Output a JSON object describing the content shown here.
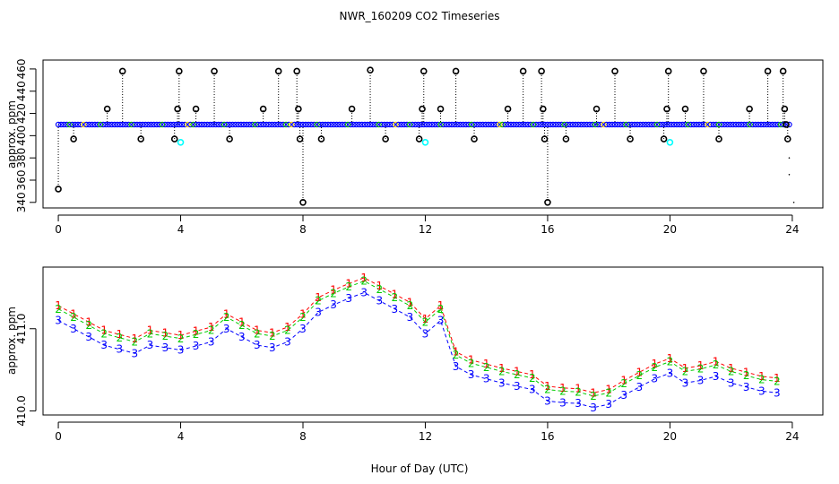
{
  "title": "NWR_160209  CO2 Timeseries",
  "x_axis_label": "Hour of Day (UTC)",
  "colors": {
    "axis": "#000000",
    "outlier_marker": "#000000",
    "main_series": "#0000ff",
    "cyan_points": "#00ffff",
    "yellow_points": "#ffd700",
    "green_points": "#00b000",
    "series_1": "#ff0000",
    "series_2": "#00cc00",
    "series_3": "#0000ff"
  },
  "chart_data": [
    {
      "type": "scatter",
      "panel": "top",
      "ylabel": "approx. ppm",
      "xlim": [
        -0.5,
        25.0
      ],
      "ylim": [
        335,
        468
      ],
      "xticks": [
        0,
        4,
        8,
        12,
        16,
        20,
        24
      ],
      "xtick_labels": [
        "0",
        "4",
        "8",
        "12",
        "16",
        "20",
        "24"
      ],
      "yticks": [
        340,
        360,
        380,
        400,
        420,
        440,
        460
      ],
      "ytick_labels": [
        "340",
        "360",
        "380",
        "400",
        "420",
        "440",
        "460"
      ],
      "baseline": 410,
      "baseline_range": [
        0,
        23.9
      ],
      "outliers": [
        {
          "x": 0.0,
          "y": 352
        },
        {
          "x": 0.5,
          "y": 397
        },
        {
          "x": 1.6,
          "y": 424
        },
        {
          "x": 2.1,
          "y": 458
        },
        {
          "x": 2.7,
          "y": 397
        },
        {
          "x": 3.8,
          "y": 397
        },
        {
          "x": 3.9,
          "y": 424
        },
        {
          "x": 3.95,
          "y": 458
        },
        {
          "x": 4.5,
          "y": 424
        },
        {
          "x": 5.1,
          "y": 458
        },
        {
          "x": 5.6,
          "y": 397
        },
        {
          "x": 6.7,
          "y": 424
        },
        {
          "x": 7.2,
          "y": 458
        },
        {
          "x": 7.8,
          "y": 458
        },
        {
          "x": 7.85,
          "y": 424
        },
        {
          "x": 7.9,
          "y": 397
        },
        {
          "x": 8.0,
          "y": 340
        },
        {
          "x": 8.6,
          "y": 397
        },
        {
          "x": 9.6,
          "y": 424
        },
        {
          "x": 10.2,
          "y": 459
        },
        {
          "x": 10.7,
          "y": 397
        },
        {
          "x": 11.8,
          "y": 397
        },
        {
          "x": 11.9,
          "y": 424
        },
        {
          "x": 11.95,
          "y": 458
        },
        {
          "x": 12.5,
          "y": 424
        },
        {
          "x": 13.0,
          "y": 458
        },
        {
          "x": 13.6,
          "y": 397
        },
        {
          "x": 14.7,
          "y": 424
        },
        {
          "x": 15.2,
          "y": 458
        },
        {
          "x": 15.8,
          "y": 458
        },
        {
          "x": 15.85,
          "y": 424
        },
        {
          "x": 15.9,
          "y": 397
        },
        {
          "x": 16.0,
          "y": 340
        },
        {
          "x": 16.6,
          "y": 397
        },
        {
          "x": 17.6,
          "y": 424
        },
        {
          "x": 18.2,
          "y": 458
        },
        {
          "x": 18.7,
          "y": 397
        },
        {
          "x": 19.8,
          "y": 397
        },
        {
          "x": 19.9,
          "y": 424
        },
        {
          "x": 19.95,
          "y": 458
        },
        {
          "x": 20.5,
          "y": 424
        },
        {
          "x": 21.1,
          "y": 458
        },
        {
          "x": 21.6,
          "y": 397
        },
        {
          "x": 22.6,
          "y": 424
        },
        {
          "x": 23.2,
          "y": 458
        },
        {
          "x": 23.7,
          "y": 458
        },
        {
          "x": 23.75,
          "y": 424
        },
        {
          "x": 23.8,
          "y": 410
        },
        {
          "x": 23.85,
          "y": 397
        }
      ],
      "cyan_points": [
        {
          "x": 4.0,
          "y": 394
        },
        {
          "x": 12.0,
          "y": 394
        },
        {
          "x": 20.0,
          "y": 394
        }
      ],
      "tail_dots": [
        {
          "x": 23.9,
          "y": 380
        },
        {
          "x": 23.9,
          "y": 365
        },
        {
          "x": 24.05,
          "y": 340
        }
      ]
    },
    {
      "type": "line",
      "panel": "bottom",
      "ylabel": "approx. ppm",
      "xlabel": "Hour of Day (UTC)",
      "xlim": [
        -0.5,
        25.0
      ],
      "ylim": [
        409.95,
        411.75
      ],
      "xticks": [
        0,
        4,
        8,
        12,
        16,
        20,
        24
      ],
      "xtick_labels": [
        "0",
        "4",
        "8",
        "12",
        "16",
        "20",
        "24"
      ],
      "yticks": [
        410.0,
        411.0
      ],
      "ytick_labels": [
        "410.0",
        "411.0"
      ],
      "x": [
        0.0,
        0.5,
        1.0,
        1.5,
        2.0,
        2.5,
        3.0,
        3.5,
        4.0,
        4.5,
        5.0,
        5.5,
        6.0,
        6.5,
        7.0,
        7.5,
        8.0,
        8.5,
        9.0,
        9.5,
        10.0,
        10.5,
        11.0,
        11.5,
        12.0,
        12.5,
        13.0,
        13.5,
        14.0,
        14.5,
        15.0,
        15.5,
        16.0,
        16.5,
        17.0,
        17.5,
        18.0,
        18.5,
        19.0,
        19.5,
        20.0,
        20.5,
        21.0,
        21.5,
        22.0,
        22.5,
        23.0,
        23.5
      ],
      "series": [
        {
          "name": "1",
          "label": "1",
          "values": [
            411.28,
            411.18,
            411.08,
            410.98,
            410.93,
            410.88,
            410.98,
            410.95,
            410.92,
            410.97,
            411.02,
            411.18,
            411.08,
            410.98,
            410.95,
            411.02,
            411.18,
            411.38,
            411.47,
            411.55,
            411.62,
            411.52,
            411.42,
            411.32,
            411.12,
            411.28,
            410.72,
            410.62,
            410.57,
            410.52,
            410.48,
            410.44,
            410.3,
            410.28,
            410.27,
            410.22,
            410.26,
            410.37,
            410.47,
            410.57,
            410.64,
            410.52,
            410.55,
            410.6,
            410.52,
            410.47,
            410.42,
            410.4
          ]
        },
        {
          "name": "2",
          "label": "2",
          "values": [
            411.24,
            411.14,
            411.04,
            410.94,
            410.89,
            410.84,
            410.94,
            410.91,
            410.88,
            410.93,
            410.98,
            411.14,
            411.04,
            410.94,
            410.91,
            410.98,
            411.14,
            411.34,
            411.43,
            411.51,
            411.58,
            411.48,
            411.38,
            411.28,
            411.08,
            411.24,
            410.68,
            410.58,
            410.53,
            410.48,
            410.44,
            410.4,
            410.26,
            410.24,
            410.23,
            410.18,
            410.22,
            410.33,
            410.43,
            410.53,
            410.6,
            410.48,
            410.51,
            410.56,
            410.48,
            410.43,
            410.38,
            410.36
          ]
        },
        {
          "name": "3",
          "label": "3",
          "values": [
            411.1,
            411.0,
            410.9,
            410.8,
            410.75,
            410.7,
            410.8,
            410.77,
            410.74,
            410.79,
            410.84,
            411.0,
            410.9,
            410.8,
            410.77,
            410.84,
            411.0,
            411.2,
            411.29,
            411.37,
            411.44,
            411.34,
            411.24,
            411.14,
            410.94,
            411.1,
            410.54,
            410.44,
            410.39,
            410.34,
            410.3,
            410.26,
            410.12,
            410.1,
            410.09,
            410.04,
            410.08,
            410.19,
            410.29,
            410.39,
            410.46,
            410.34,
            410.37,
            410.42,
            410.34,
            410.29,
            410.24,
            410.22
          ]
        }
      ]
    }
  ]
}
